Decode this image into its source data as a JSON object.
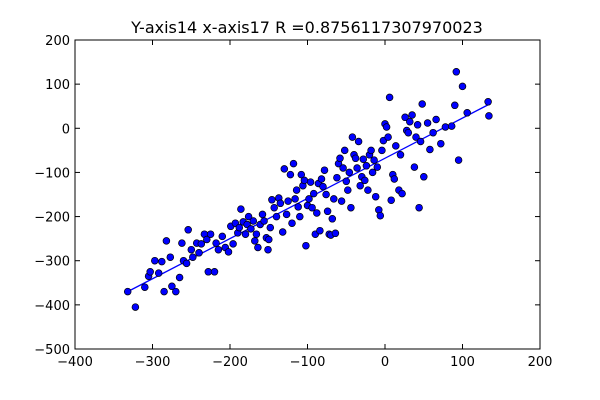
{
  "chart_data": {
    "type": "scatter",
    "title": "Y-axis14  x-axis17  R =0.8756117307970023",
    "xlabel": "",
    "ylabel": "",
    "xlim": [
      -400,
      200
    ],
    "ylim": [
      -500,
      200
    ],
    "xticks": [
      -400,
      -300,
      -200,
      -100,
      0,
      100,
      200
    ],
    "yticks": [
      -500,
      -400,
      -300,
      -200,
      -100,
      0,
      100,
      200
    ],
    "xtick_labels": [
      "−400",
      "−300",
      "−200",
      "−100",
      "0",
      "100",
      "200"
    ],
    "ytick_labels": [
      "−500",
      "−400",
      "−300",
      "−200",
      "−100",
      "0",
      "100",
      "200"
    ],
    "grid": false,
    "colors": {
      "point": "#0000ff",
      "line": "#0000ff"
    },
    "fit_line": {
      "x": [
        -332,
        135
      ],
      "y": [
        -370,
        55
      ]
    },
    "series": [
      {
        "name": "points",
        "points": [
          [
            -332,
            -370
          ],
          [
            -322,
            -405
          ],
          [
            -310,
            -360
          ],
          [
            -305,
            -335
          ],
          [
            -303,
            -325
          ],
          [
            -297,
            -300
          ],
          [
            -292,
            -328
          ],
          [
            -288,
            -302
          ],
          [
            -285,
            -370
          ],
          [
            -282,
            -255
          ],
          [
            -277,
            -292
          ],
          [
            -275,
            -358
          ],
          [
            -270,
            -370
          ],
          [
            -265,
            -338
          ],
          [
            -262,
            -260
          ],
          [
            -260,
            -300
          ],
          [
            -256,
            -306
          ],
          [
            -254,
            -230
          ],
          [
            -250,
            -275
          ],
          [
            -248,
            -292
          ],
          [
            -243,
            -260
          ],
          [
            -240,
            -282
          ],
          [
            -237,
            -262
          ],
          [
            -233,
            -240
          ],
          [
            -230,
            -252
          ],
          [
            -228,
            -325
          ],
          [
            -225,
            -240
          ],
          [
            -220,
            -325
          ],
          [
            -218,
            -260
          ],
          [
            -215,
            -275
          ],
          [
            -210,
            -245
          ],
          [
            -206,
            -270
          ],
          [
            -202,
            -280
          ],
          [
            -199,
            -222
          ],
          [
            -196,
            -262
          ],
          [
            -193,
            -215
          ],
          [
            -190,
            -237
          ],
          [
            -188,
            -225
          ],
          [
            -186,
            -183
          ],
          [
            -183,
            -212
          ],
          [
            -180,
            -240
          ],
          [
            -178,
            -218
          ],
          [
            -176,
            -200
          ],
          [
            -173,
            -228
          ],
          [
            -170,
            -210
          ],
          [
            -168,
            -255
          ],
          [
            -166,
            -240
          ],
          [
            -164,
            -270
          ],
          [
            -161,
            -218
          ],
          [
            -158,
            -195
          ],
          [
            -156,
            -210
          ],
          [
            -153,
            -248
          ],
          [
            -151,
            -275
          ],
          [
            -150,
            -252
          ],
          [
            -148,
            -225
          ],
          [
            -146,
            -162
          ],
          [
            -143,
            -180
          ],
          [
            -140,
            -200
          ],
          [
            -137,
            -158
          ],
          [
            -135,
            -170
          ],
          [
            -132,
            -235
          ],
          [
            -130,
            -92
          ],
          [
            -127,
            -195
          ],
          [
            -125,
            -165
          ],
          [
            -122,
            -105
          ],
          [
            -120,
            -215
          ],
          [
            -118,
            -80
          ],
          [
            -116,
            -160
          ],
          [
            -114,
            -140
          ],
          [
            -112,
            -178
          ],
          [
            -110,
            -200
          ],
          [
            -108,
            -105
          ],
          [
            -106,
            -130
          ],
          [
            -104,
            -118
          ],
          [
            -102,
            -266
          ],
          [
            -100,
            -175
          ],
          [
            -98,
            -160
          ],
          [
            -96,
            -122
          ],
          [
            -94,
            -180
          ],
          [
            -92,
            -148
          ],
          [
            -90,
            -240
          ],
          [
            -88,
            -192
          ],
          [
            -86,
            -125
          ],
          [
            -84,
            -232
          ],
          [
            -82,
            -115
          ],
          [
            -80,
            -132
          ],
          [
            -78,
            -95
          ],
          [
            -76,
            -150
          ],
          [
            -74,
            -188
          ],
          [
            -72,
            -240
          ],
          [
            -70,
            -242
          ],
          [
            -68,
            -205
          ],
          [
            -66,
            -160
          ],
          [
            -64,
            -238
          ],
          [
            -62,
            -112
          ],
          [
            -60,
            -80
          ],
          [
            -58,
            -68
          ],
          [
            -56,
            -165
          ],
          [
            -54,
            -90
          ],
          [
            -52,
            -50
          ],
          [
            -50,
            -120
          ],
          [
            -48,
            -140
          ],
          [
            -46,
            -100
          ],
          [
            -44,
            -180
          ],
          [
            -42,
            -20
          ],
          [
            -40,
            -60
          ],
          [
            -38,
            -68
          ],
          [
            -36,
            -90
          ],
          [
            -34,
            -30
          ],
          [
            -32,
            -130
          ],
          [
            -30,
            -110
          ],
          [
            -28,
            -70
          ],
          [
            -26,
            -118
          ],
          [
            -24,
            -85
          ],
          [
            -22,
            -140
          ],
          [
            -20,
            -60
          ],
          [
            -18,
            -50
          ],
          [
            -16,
            -100
          ],
          [
            -14,
            -72
          ],
          [
            -12,
            -155
          ],
          [
            -10,
            -88
          ],
          [
            -8,
            -185
          ],
          [
            -6,
            -198
          ],
          [
            -4,
            -50
          ],
          [
            -2,
            -28
          ],
          [
            0,
            10
          ],
          [
            2,
            3
          ],
          [
            4,
            -20
          ],
          [
            6,
            70
          ],
          [
            8,
            -163
          ],
          [
            10,
            -105
          ],
          [
            12,
            -115
          ],
          [
            14,
            -40
          ],
          [
            18,
            -140
          ],
          [
            20,
            -60
          ],
          [
            22,
            -148
          ],
          [
            26,
            25
          ],
          [
            28,
            -5
          ],
          [
            30,
            -10
          ],
          [
            32,
            15
          ],
          [
            35,
            30
          ],
          [
            38,
            -88
          ],
          [
            40,
            -20
          ],
          [
            42,
            8
          ],
          [
            44,
            -180
          ],
          [
            46,
            -30
          ],
          [
            48,
            55
          ],
          [
            50,
            -110
          ],
          [
            55,
            12
          ],
          [
            58,
            -48
          ],
          [
            62,
            -10
          ],
          [
            66,
            20
          ],
          [
            72,
            -35
          ],
          [
            78,
            3
          ],
          [
            86,
            5
          ],
          [
            90,
            52
          ],
          [
            92,
            128
          ],
          [
            95,
            -72
          ],
          [
            100,
            95
          ],
          [
            106,
            35
          ],
          [
            133,
            60
          ],
          [
            134,
            28
          ]
        ]
      }
    ]
  }
}
